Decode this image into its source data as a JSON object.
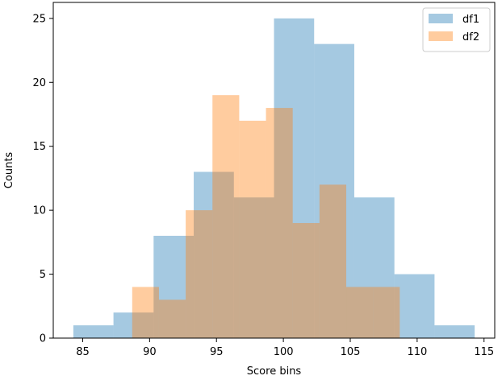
{
  "chart_data": {
    "type": "histogram",
    "title": "",
    "xlabel": "Score bins",
    "ylabel": "Counts",
    "xlim": [
      82.8,
      115.8
    ],
    "ylim": [
      0,
      26.25
    ],
    "xticks": [
      85,
      90,
      95,
      100,
      105,
      110,
      115
    ],
    "yticks": [
      0,
      5,
      10,
      15,
      20,
      25
    ],
    "grid": false,
    "legend_position": "top-right",
    "series": [
      {
        "name": "df1",
        "color": "#1f77b4",
        "alpha": 0.4,
        "bins": [
          {
            "x0": 84.3,
            "x1": 87.3,
            "count": 1
          },
          {
            "x0": 87.3,
            "x1": 90.3,
            "count": 2
          },
          {
            "x0": 90.3,
            "x1": 93.3,
            "count": 8
          },
          {
            "x0": 93.3,
            "x1": 96.3,
            "count": 13
          },
          {
            "x0": 96.3,
            "x1": 99.3,
            "count": 11
          },
          {
            "x0": 99.3,
            "x1": 102.3,
            "count": 25
          },
          {
            "x0": 102.3,
            "x1": 105.3,
            "count": 23
          },
          {
            "x0": 105.3,
            "x1": 108.3,
            "count": 11
          },
          {
            "x0": 108.3,
            "x1": 111.3,
            "count": 5
          },
          {
            "x0": 111.3,
            "x1": 114.3,
            "count": 1
          }
        ]
      },
      {
        "name": "df2",
        "color": "#ff7f0e",
        "alpha": 0.4,
        "bins": [
          {
            "x0": 88.7,
            "x1": 90.7,
            "count": 4
          },
          {
            "x0": 90.7,
            "x1": 92.7,
            "count": 3
          },
          {
            "x0": 92.7,
            "x1": 94.7,
            "count": 10
          },
          {
            "x0": 94.7,
            "x1": 96.7,
            "count": 19
          },
          {
            "x0": 96.7,
            "x1": 98.7,
            "count": 17
          },
          {
            "x0": 98.7,
            "x1": 100.7,
            "count": 18
          },
          {
            "x0": 100.7,
            "x1": 102.7,
            "count": 9
          },
          {
            "x0": 102.7,
            "x1": 104.7,
            "count": 12
          },
          {
            "x0": 104.7,
            "x1": 106.7,
            "count": 4
          },
          {
            "x0": 106.7,
            "x1": 108.7,
            "count": 4
          }
        ]
      }
    ]
  }
}
